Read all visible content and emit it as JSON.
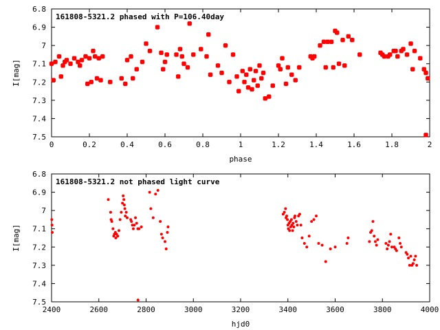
{
  "chart_data": [
    {
      "type": "scatter",
      "title": "161808-5321.2 phased with P=106.40day",
      "xlabel": "phase",
      "ylabel": "I[mag]",
      "xlim": [
        0,
        2
      ],
      "ylim": [
        6.8,
        7.5
      ],
      "y_inverted": true,
      "xticks": [
        0,
        0.2,
        0.4,
        0.6,
        0.8,
        1,
        1.2,
        1.4,
        1.6,
        1.8,
        2
      ],
      "xtick_labels": [
        "0",
        "0.2",
        "0.4",
        "0.6",
        "0.8",
        "1",
        "1.2",
        "1.4",
        "1.6",
        "1.8",
        "2"
      ],
      "yticks": [
        6.8,
        6.9,
        7,
        7.1,
        7.2,
        7.3,
        7.4,
        7.5
      ],
      "ytick_labels": [
        "6.8",
        "6.9",
        "7",
        "7.1",
        "7.2",
        "7.3",
        "7.4",
        "7.5"
      ],
      "grid": false,
      "marker_color": "#ff0000",
      "series": [
        {
          "x": [
            0.0,
            0.01,
            0.02,
            0.04,
            0.05,
            0.06,
            0.07,
            0.08,
            0.1,
            0.12,
            0.14,
            0.15,
            0.16,
            0.18,
            0.19,
            0.2,
            0.21,
            0.22,
            0.23,
            0.24,
            0.25,
            0.26,
            0.27,
            0.31,
            0.37,
            0.39,
            0.4,
            0.42,
            0.43,
            0.45,
            0.48,
            0.5,
            0.52,
            0.56,
            0.58,
            0.59,
            0.6,
            0.61,
            0.66,
            0.67,
            0.68,
            0.69,
            0.7,
            0.72,
            0.73,
            0.75,
            0.79,
            0.82,
            0.83,
            0.84,
            0.88,
            0.9,
            0.92,
            0.94,
            0.96,
            0.98,
            0.99,
            1.01,
            1.02,
            1.03,
            1.04,
            1.05,
            1.06,
            1.07,
            1.08,
            1.09,
            1.1,
            1.11,
            1.12,
            1.13,
            1.15,
            1.17,
            1.2,
            1.21,
            1.22,
            1.24,
            1.25,
            1.27,
            1.29,
            1.31,
            1.37,
            1.38,
            1.39,
            1.42,
            1.44,
            1.45,
            1.46,
            1.48,
            1.49,
            1.5,
            1.51,
            1.52,
            1.54,
            1.55,
            1.57,
            1.59,
            1.63,
            1.74,
            1.75,
            1.76,
            1.78,
            1.79,
            1.81,
            1.82,
            1.83,
            1.85,
            1.86,
            1.88,
            1.9,
            1.91,
            1.92,
            1.95,
            1.97,
            1.98,
            1.99
          ],
          "y": [
            7.1,
            7.19,
            7.09,
            7.06,
            7.17,
            7.11,
            7.09,
            7.08,
            7.1,
            7.07,
            7.09,
            7.11,
            7.08,
            7.06,
            7.21,
            7.07,
            7.2,
            7.03,
            7.06,
            7.18,
            7.07,
            7.19,
            7.06,
            7.2,
            7.18,
            7.21,
            7.08,
            7.06,
            7.18,
            7.13,
            7.09,
            6.99,
            7.03,
            6.9,
            7.04,
            7.13,
            7.09,
            7.05,
            7.05,
            7.17,
            7.02,
            7.06,
            7.1,
            7.12,
            6.88,
            7.05,
            7.02,
            7.06,
            6.94,
            7.16,
            7.11,
            7.15,
            7.0,
            7.2,
            7.05,
            7.17,
            7.25,
            7.14,
            7.2,
            7.16,
            7.23,
            7.13,
            7.24,
            7.19,
            7.14,
            7.22,
            7.11,
            7.18,
            7.15,
            7.29,
            7.28,
            7.22,
            7.11,
            7.13,
            7.07,
            7.21,
            7.12,
            7.16,
            7.19,
            7.12,
            7.06,
            7.07,
            7.06,
            7.0,
            6.98,
            7.12,
            6.98,
            6.98,
            7.12,
            6.92,
            6.93,
            7.1,
            6.97,
            7.11,
            6.95,
            6.97,
            7.05,
            7.04,
            7.05,
            7.06,
            7.06,
            7.05,
            7.03,
            7.03,
            7.06,
            7.03,
            7.02,
            7.05,
            6.99,
            7.13,
            7.03,
            7.07,
            7.13,
            7.15,
            7.18
          ],
          "outliers": [
            {
              "x": 1.98,
              "y": 7.49
            }
          ]
        }
      ]
    },
    {
      "type": "scatter",
      "title": "161808-5321.2 not phased light curve",
      "xlabel": "hjd0",
      "ylabel": "I[mag]",
      "xlim": [
        2400,
        4000
      ],
      "ylim": [
        6.8,
        7.5
      ],
      "y_inverted": true,
      "xticks": [
        2400,
        2600,
        2800,
        3000,
        3200,
        3400,
        3600,
        3800,
        4000
      ],
      "xtick_labels": [
        "2400",
        "2600",
        "2800",
        "3000",
        "3200",
        "3400",
        "3600",
        "3800",
        "4000"
      ],
      "yticks": [
        6.8,
        6.9,
        7,
        7.1,
        7.2,
        7.3,
        7.4,
        7.5
      ],
      "ytick_labels": [
        "6.8",
        "6.9",
        "7",
        "7.1",
        "7.2",
        "7.3",
        "7.4",
        "7.5"
      ],
      "grid": false,
      "marker_color": "#ff0000",
      "series": [
        {
          "x": [
            2401,
            2402,
            2403,
            2640,
            2650,
            2652,
            2655,
            2660,
            2663,
            2666,
            2670,
            2672,
            2675,
            2680,
            2685,
            2690,
            2695,
            2700,
            2703,
            2706,
            2708,
            2710,
            2712,
            2716,
            2720,
            2735,
            2738,
            2742,
            2746,
            2750,
            2755,
            2760,
            2765,
            2770,
            2780,
            2815,
            2820,
            2830,
            2840,
            2850,
            2860,
            2865,
            2870,
            2880,
            2885,
            2890,
            2893,
            3380,
            3385,
            3390,
            3392,
            3395,
            3398,
            3400,
            3402,
            3405,
            3407,
            3410,
            3412,
            3415,
            3417,
            3420,
            3422,
            3425,
            3428,
            3430,
            3435,
            3440,
            3445,
            3450,
            3455,
            3460,
            3470,
            3480,
            3490,
            3500,
            3510,
            3520,
            3530,
            3545,
            3560,
            3580,
            3600,
            3650,
            3655,
            3745,
            3750,
            3755,
            3760,
            3765,
            3770,
            3775,
            3780,
            3815,
            3820,
            3825,
            3830,
            3835,
            3840,
            3850,
            3855,
            3860,
            3870,
            3875,
            3880,
            3900,
            3905,
            3910,
            3915,
            3920,
            3925,
            3930,
            3935,
            3940,
            3945
          ],
          "y": [
            7.05,
            7.08,
            7.12,
            6.94,
            7.01,
            7.05,
            7.06,
            7.1,
            7.14,
            7.13,
            7.12,
            7.15,
            7.13,
            7.14,
            7.11,
            7.05,
            7.01,
            6.96,
            6.92,
            6.94,
            6.97,
            6.99,
            7.03,
            7.01,
            7.04,
            7.05,
            7.06,
            7.08,
            7.1,
            7.08,
            7.04,
            7.07,
            7.1,
            7.1,
            7.09,
            6.9,
            6.99,
            7.04,
            6.91,
            6.89,
            7.06,
            7.13,
            7.15,
            7.17,
            7.21,
            7.12,
            7.09,
            7.02,
            7.01,
            6.99,
            7.04,
            7.03,
            7.05,
            7.08,
            7.1,
            7.07,
            7.11,
            7.06,
            7.09,
            7.05,
            7.08,
            7.11,
            7.07,
            7.09,
            7.04,
            7.03,
            7.06,
            7.08,
            7.03,
            7.02,
            7.08,
            7.15,
            7.18,
            7.2,
            7.14,
            7.06,
            7.05,
            7.03,
            7.18,
            7.19,
            7.28,
            7.21,
            7.2,
            7.18,
            7.15,
            7.17,
            7.12,
            7.11,
            7.06,
            7.14,
            7.17,
            7.19,
            7.16,
            7.18,
            7.21,
            7.19,
            7.17,
            7.13,
            7.2,
            7.2,
            7.21,
            7.22,
            7.15,
            7.18,
            7.2,
            7.23,
            7.24,
            7.26,
            7.3,
            7.25,
            7.3,
            7.29,
            7.27,
            7.25,
            7.3
          ],
          "outliers": [
            {
              "x": 2766,
              "y": 7.49
            }
          ]
        }
      ]
    }
  ]
}
